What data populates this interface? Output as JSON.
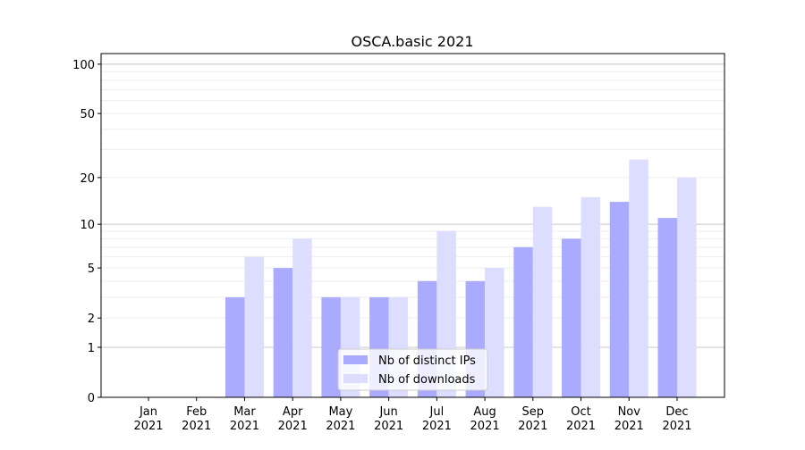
{
  "chart_data": {
    "type": "bar",
    "title": "OSCA.basic 2021",
    "xlabel": "",
    "ylabel": "",
    "yscale": "log(1+y)",
    "ylim": [
      0,
      116
    ],
    "yticks": [
      0,
      1,
      2,
      5,
      10,
      20,
      50,
      100
    ],
    "grid": true,
    "legend_position": "lower-center",
    "categories": [
      "Jan\n2021",
      "Feb\n2021",
      "Mar\n2021",
      "Apr\n2021",
      "May\n2021",
      "Jun\n2021",
      "Jul\n2021",
      "Aug\n2021",
      "Sep\n2021",
      "Oct\n2021",
      "Nov\n2021",
      "Dec\n2021"
    ],
    "series": [
      {
        "name": "Nb of distinct IPs",
        "color": "#aaaaff",
        "values": [
          0,
          0,
          3,
          5,
          3,
          3,
          4,
          4,
          7,
          8,
          14,
          11
        ]
      },
      {
        "name": "Nb of downloads",
        "color": "#ddddff",
        "values": [
          0,
          0,
          6,
          8,
          3,
          3,
          9,
          5,
          13,
          15,
          26,
          20
        ]
      }
    ]
  }
}
